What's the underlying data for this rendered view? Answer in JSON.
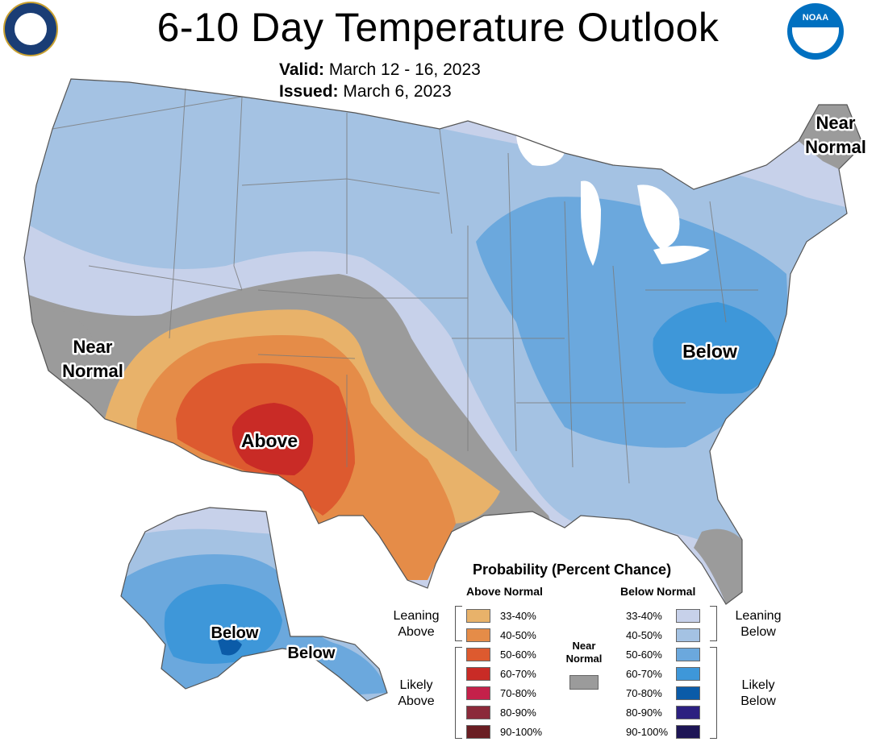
{
  "header": {
    "title": "6-10 Day Temperature Outlook",
    "valid_label": "Valid:",
    "valid_value": "March 12 - 16, 2023",
    "issued_label": "Issued:",
    "issued_value": "March 6, 2023"
  },
  "logos": {
    "left": "department-of-commerce-seal",
    "right_label": "NOAA"
  },
  "map_labels": {
    "near_normal_west_1": "Near",
    "near_normal_west_2": "Normal",
    "near_normal_ne_1": "Near",
    "near_normal_ne_2": "Normal",
    "above": "Above",
    "below_se": "Below",
    "below_alaska_1": "Below",
    "below_alaska_2": "Below"
  },
  "colors": {
    "above_33_40": "#e8b26a",
    "above_40_50": "#e58c48",
    "above_50_60": "#dd5a2f",
    "above_60_70": "#c92b26",
    "above_70_80": "#c4214a",
    "above_80_90": "#8b2a3a",
    "above_90_100": "#6a1e23",
    "near_normal": "#9b9b9b",
    "below_33_40": "#c7d1ea",
    "below_40_50": "#a4c2e3",
    "below_50_60": "#6ba8dd",
    "below_60_70": "#3e97d9",
    "below_70_80": "#0b5ba8",
    "below_80_90": "#2c2080",
    "below_90_100": "#1d1555",
    "boundary": "#7a7a7a",
    "lake": "#ffffff"
  },
  "legend": {
    "title": "Probability (Percent Chance)",
    "above_header": "Above Normal",
    "below_header": "Below Normal",
    "above_rows": [
      {
        "label": "33-40%",
        "color": "#e8b26a"
      },
      {
        "label": "40-50%",
        "color": "#e58c48"
      },
      {
        "label": "50-60%",
        "color": "#dd5a2f"
      },
      {
        "label": "60-70%",
        "color": "#c92b26"
      },
      {
        "label": "70-80%",
        "color": "#c4214a"
      },
      {
        "label": "80-90%",
        "color": "#8b2a3a"
      },
      {
        "label": "90-100%",
        "color": "#6a1e23"
      }
    ],
    "below_rows": [
      {
        "label": "33-40%",
        "color": "#c7d1ea"
      },
      {
        "label": "40-50%",
        "color": "#a4c2e3"
      },
      {
        "label": "50-60%",
        "color": "#6ba8dd"
      },
      {
        "label": "60-70%",
        "color": "#3e97d9"
      },
      {
        "label": "70-80%",
        "color": "#0b5ba8"
      },
      {
        "label": "80-90%",
        "color": "#2c2080"
      },
      {
        "label": "90-100%",
        "color": "#1d1555"
      }
    ],
    "leaning_above_1": "Leaning",
    "leaning_above_2": "Above",
    "likely_above_1": "Likely",
    "likely_above_2": "Above",
    "leaning_below_1": "Leaning",
    "leaning_below_2": "Below",
    "likely_below_1": "Likely",
    "likely_below_2": "Below",
    "near_normal_1": "Near",
    "near_normal_2": "Normal"
  }
}
